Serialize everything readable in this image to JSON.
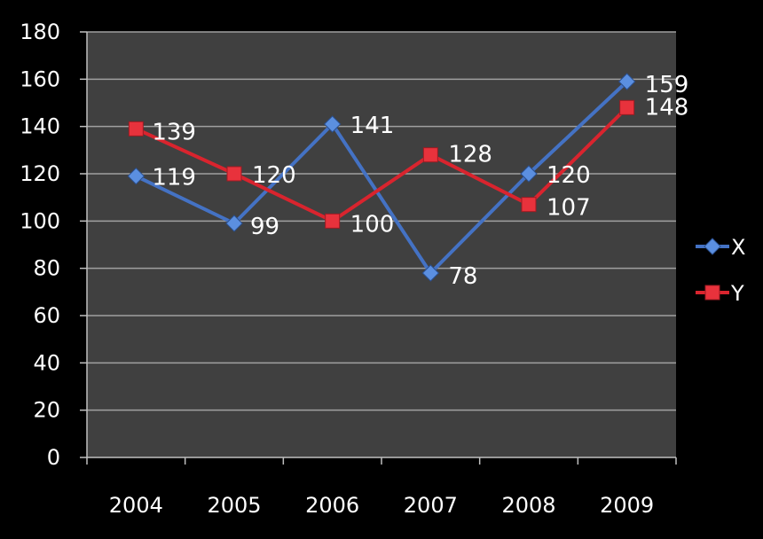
{
  "chart_data": {
    "type": "line",
    "categories": [
      "2004",
      "2005",
      "2006",
      "2007",
      "2008",
      "2009"
    ],
    "ylim": [
      0,
      180
    ],
    "yticks": [
      0,
      20,
      40,
      60,
      80,
      100,
      120,
      140,
      160,
      180
    ],
    "grid": true,
    "legend_position": "right",
    "series": [
      {
        "name": "X",
        "values": [
          119,
          99,
          141,
          78,
          120,
          159
        ],
        "color": "#4472c4",
        "marker": "diamond"
      },
      {
        "name": "Y",
        "values": [
          139,
          120,
          100,
          128,
          107,
          148
        ],
        "color": "#d9242e",
        "marker": "square"
      }
    ]
  },
  "colors": {
    "background": "#000000",
    "plot_area": "#404040",
    "gridline": "#a0a0a0",
    "text": "#ffffff"
  }
}
